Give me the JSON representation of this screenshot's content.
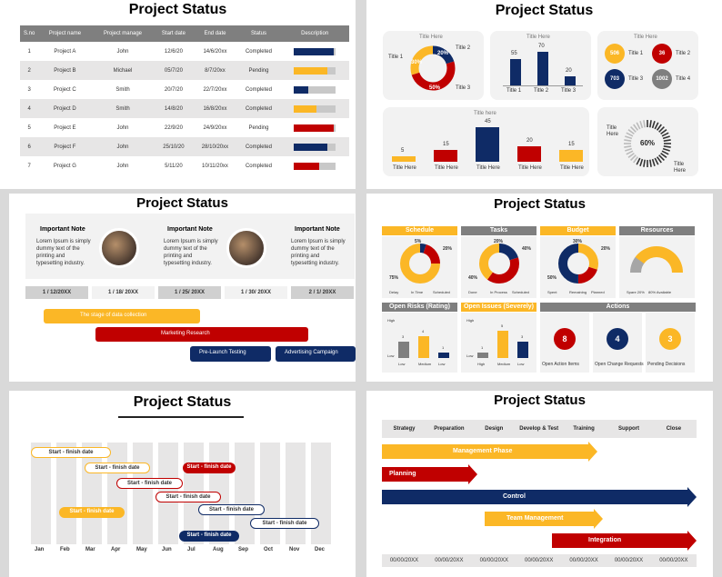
{
  "colors": {
    "yellow": "#fbb726",
    "red": "#c00000",
    "navy": "#0f2b66",
    "gray": "#a6a6a6",
    "dark": "#7f7f7f"
  },
  "slide1": {
    "title": "Project Status",
    "headers": [
      "S.no",
      "Project name",
      "Project manage",
      "Start date",
      "End date",
      "Status",
      "Description"
    ],
    "rows": [
      {
        "sno": "1",
        "name": "Project A",
        "manager": "John",
        "start": "12/6/20",
        "end": "14/6/20xx",
        "status": "Completed",
        "color": "#0f2b66",
        "pct": 0.95
      },
      {
        "sno": "2",
        "name": "Project B",
        "manager": "Michael",
        "start": "05/7/20",
        "end": "8/7/20xx",
        "status": "Pending",
        "color": "#fbb726",
        "pct": 0.8
      },
      {
        "sno": "3",
        "name": "Project C",
        "manager": "Smith",
        "start": "20/7/20",
        "end": "22/7/20xx",
        "status": "Completed",
        "color": "#0f2b66",
        "pct": 0.35
      },
      {
        "sno": "4",
        "name": "Project D",
        "manager": "Smith",
        "start": "14/8/20",
        "end": "16/8/20xx",
        "status": "Completed",
        "color": "#fbb726",
        "pct": 0.55
      },
      {
        "sno": "5",
        "name": "Project E",
        "manager": "John",
        "start": "22/9/20",
        "end": "24/9/20xx",
        "status": "Pending",
        "color": "#c00000",
        "pct": 0.95
      },
      {
        "sno": "6",
        "name": "Project F",
        "manager": "John",
        "start": "25/10/20",
        "end": "28/10/20xx",
        "status": "Completed",
        "color": "#0f2b66",
        "pct": 0.8
      },
      {
        "sno": "7",
        "name": "Project G",
        "manager": "John",
        "start": "5/11/20",
        "end": "10/11/20xx",
        "status": "Completed",
        "color": "#c00000",
        "pct": 0.6
      }
    ]
  },
  "slide2": {
    "title": "Project Status",
    "donut": {
      "heading": "Title Here",
      "t1": "Title 1",
      "t2": "Title 2",
      "t3": "Title 3",
      "v1": "20%",
      "v2": "30%",
      "v3": "50%"
    },
    "bars1": {
      "heading": "Title Here",
      "labels": [
        "Title 1",
        "Title 2",
        "Title 3"
      ],
      "values": [
        55,
        70,
        20
      ]
    },
    "circles": {
      "heading": "Title Here",
      "items": [
        {
          "value": "506",
          "label": "Title 1",
          "color": "#fbb726"
        },
        {
          "value": "36",
          "label": "Title 2",
          "color": "#c00000"
        },
        {
          "value": "703",
          "label": "Title 3",
          "color": "#0f2b66"
        },
        {
          "value": "1002",
          "label": "Title 4",
          "color": "#7f7f7f"
        }
      ]
    },
    "bars2": {
      "heading": "Title here",
      "labels": [
        "Title Here",
        "Title Here",
        "Title Here",
        "Title Here",
        "Title Here"
      ],
      "values": [
        5,
        15,
        45,
        20,
        15
      ],
      "colors": [
        "#fbb726",
        "#c00000",
        "#0f2b66",
        "#c00000",
        "#fbb726"
      ]
    },
    "gauge": {
      "value": "60%",
      "label_left": "Title Here",
      "label_right": "Title Here"
    }
  },
  "slide3": {
    "title": "Project Status",
    "notes": [
      {
        "heading": "Important Note",
        "text": "Lorem Ipsum is simply dummy text of the printing and typesetting industry."
      },
      {
        "heading": "Important Note",
        "text": "Lorem Ipsum is simply dummy text of the printing and typesetting industry."
      },
      {
        "heading": "Important Note",
        "text": "Lorem Ipsum is simply dummy text of the printing and typesetting industry."
      }
    ],
    "dates": [
      "1 / 12/20XX",
      "1 / 18/ 20XX",
      "1 / 25/ 20XX",
      "1 / 30/ 20XX",
      "2 / 1/ 20XX"
    ],
    "tasks": [
      "The stage of data collection",
      "Marketing Research",
      "Pre-Launch Testing",
      "Advertising Campaign"
    ]
  },
  "slide4": {
    "title": "Project Status",
    "panels": [
      {
        "heading": "Schedule",
        "color": "#fbb726",
        "pcts": [
          "5%",
          "20%",
          "75%"
        ],
        "legend": [
          "Delay",
          "In Time",
          "Scheduled"
        ]
      },
      {
        "heading": "Tasks",
        "color": "#7f7f7f",
        "pcts": [
          "20%",
          "40%",
          "40%"
        ],
        "legend": [
          "Done",
          "In Process",
          "Scheduled"
        ]
      },
      {
        "heading": "Budget",
        "color": "#fbb726",
        "pcts": [
          "30%",
          "20%",
          "50%"
        ],
        "legend": [
          "Spent",
          "Remaining",
          "Planned"
        ]
      },
      {
        "heading": "Resources",
        "color": "#7f7f7f",
        "legend": [
          "Spare 20%",
          "80% Available"
        ]
      }
    ],
    "risks": {
      "heading": "Open Risks (Rating)",
      "labels": [
        "Low",
        "Medium",
        "Low"
      ],
      "high": "High",
      "low": "Low",
      "values": [
        3,
        4,
        1
      ]
    },
    "issues": {
      "heading": "Open Issues (Severely)",
      "labels": [
        "High",
        "Medium",
        "Low"
      ],
      "high": "High",
      "low": "Low",
      "values": [
        1,
        5,
        3
      ]
    },
    "actions": {
      "heading": "Actions",
      "items": [
        {
          "value": "8",
          "label": "Open Action Items",
          "color": "#c00000"
        },
        {
          "value": "4",
          "label": "Open Change Requests",
          "color": "#0f2b66"
        },
        {
          "value": "3",
          "label": "Pending Decisions",
          "color": "#fbb726"
        }
      ]
    }
  },
  "slide5": {
    "title": "Project Status",
    "months": [
      "Jan",
      "Feb",
      "Mar",
      "Apr",
      "May",
      "Jun",
      "Jul",
      "Aug",
      "Sep",
      "Oct",
      "Nov",
      "Dec"
    ],
    "pills": [
      {
        "label": "Start - finish date",
        "style": "outline-yellow"
      },
      {
        "label": "Start - finish date",
        "style": "outline-yellow"
      },
      {
        "label": "Start - finish date",
        "style": "fill-red"
      },
      {
        "label": "Start - finish date",
        "style": "outline-red"
      },
      {
        "label": "Start - finish date",
        "style": "outline-red"
      },
      {
        "label": "Start - finish date",
        "style": "fill-yellow"
      },
      {
        "label": "Start - finish date",
        "style": "outline-navy"
      },
      {
        "label": "Start - finish date",
        "style": "outline-navy"
      },
      {
        "label": "Start - finish date",
        "style": "fill-navy"
      }
    ]
  },
  "slide6": {
    "title": "Project Status",
    "phases": [
      "Strategy",
      "Preparation",
      "Design",
      "Develop & Test",
      "Training",
      "Support",
      "Close"
    ],
    "arrows": [
      "Management Phase",
      "Planning",
      "Control",
      "Team Management",
      "Integration"
    ],
    "dates": [
      "00/00/20XX",
      "00/00/20XX",
      "00/00/20XX",
      "00/00/20XX",
      "00/00/20XX",
      "00/00/20XX",
      "00/00/20XX"
    ]
  }
}
